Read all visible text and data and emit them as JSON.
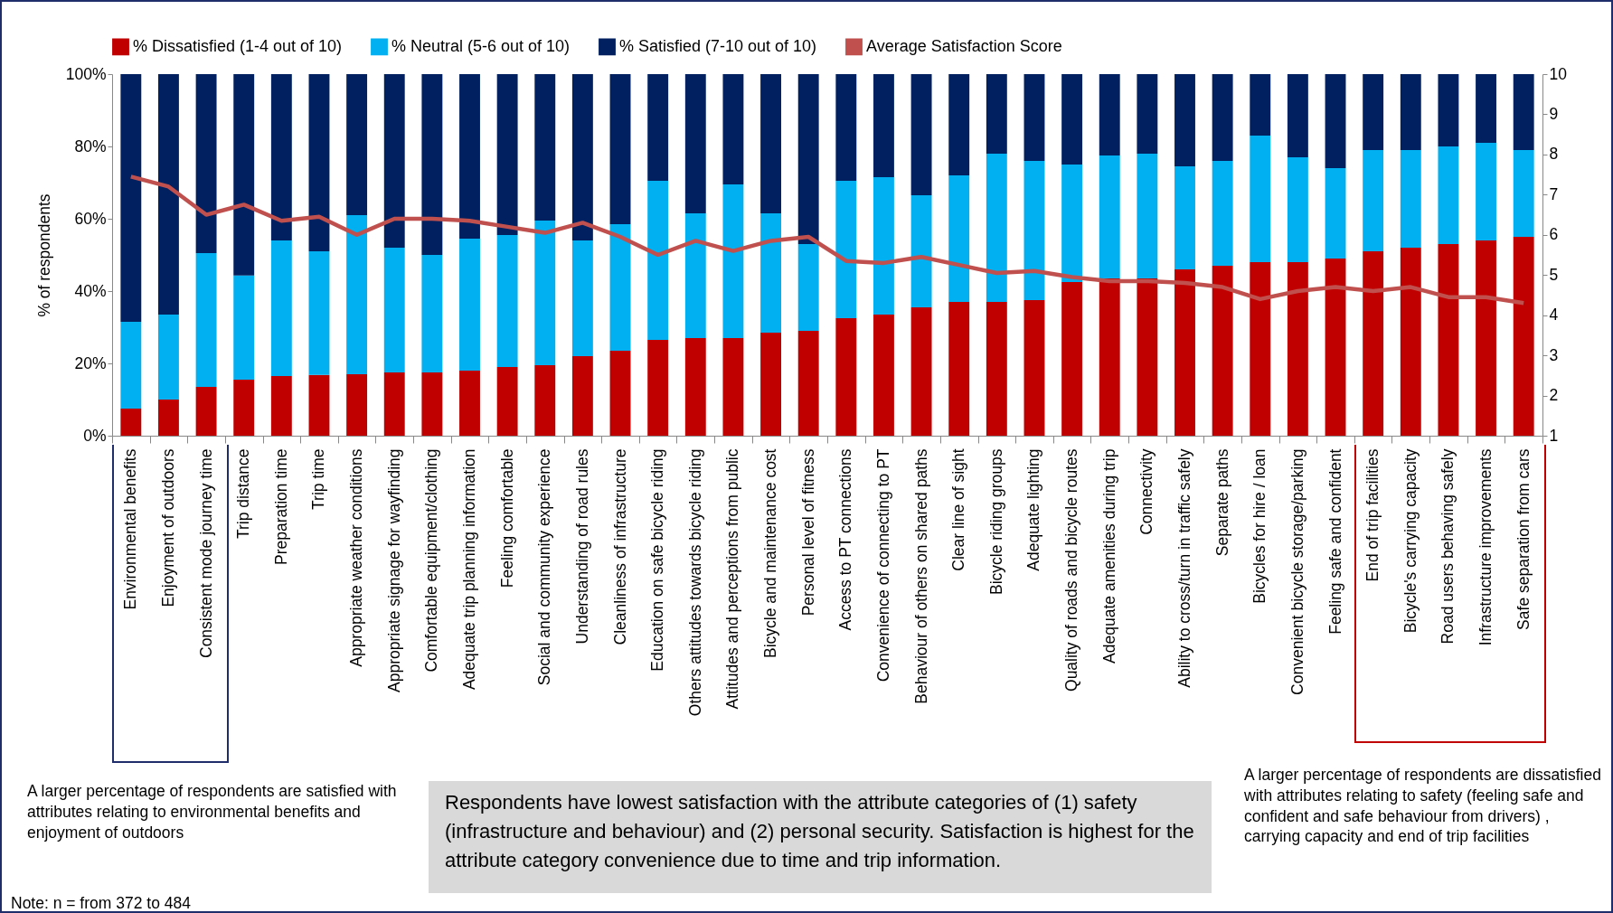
{
  "chart_data": {
    "type": "bar",
    "stacked": true,
    "categories": [
      "Environmental benefits",
      "Enjoyment of outdoors",
      "Consistent mode journey time",
      "Trip distance",
      "Preparation time",
      "Trip time",
      "Appropriate weather conditions",
      "Appropriate signage for wayfinding",
      "Comfortable equipment/clothing",
      "Adequate trip planning information",
      "Feeling comfortable",
      "Social and community experience",
      "Understanding of road rules",
      "Cleanliness of infrastructure",
      "Education on safe bicycle riding",
      "Others attitudes towards bicycle riding",
      "Attitudes and perceptions from public",
      "Bicycle and maintenance cost",
      "Personal level of fitness",
      "Access to PT connections",
      "Convenience of connecting to PT",
      "Behaviour of others on shared paths",
      "Clear line of sight",
      "Bicycle riding groups",
      "Adequate lighting",
      "Quality of roads and bicycle routes",
      "Adequate amenities during trip",
      "Connectivity",
      "Ability to cross/turn in traffic safely",
      "Separate paths",
      "Bicycles for hire / loan",
      "Convenient bicycle storage/parking",
      "Feeling safe and confident",
      "End of trip facilities",
      "Bicycle's carrying capacity",
      "Road users behaving safely",
      "Infrastructure improvements",
      "Safe separation from cars"
    ],
    "series": [
      {
        "name": "% Dissatisfied (1-4 out of 10)",
        "color": "#c00000",
        "values": [
          7.5,
          10,
          13.5,
          15.5,
          16.5,
          16.8,
          17,
          17.5,
          17.5,
          18,
          19,
          19.5,
          22,
          23.5,
          26.5,
          27,
          27,
          28.5,
          29,
          32.5,
          33.5,
          35.5,
          37,
          37,
          37.5,
          42.5,
          43.5,
          43.5,
          46,
          47,
          48,
          48,
          49,
          51,
          52,
          53,
          54,
          55
        ]
      },
      {
        "name": "% Neutral (5-6 out of 10)",
        "color": "#00b0f0",
        "values": [
          24,
          23.5,
          37,
          28.8,
          37.5,
          34.2,
          44,
          34.5,
          32.5,
          36.5,
          36.5,
          40,
          32,
          35,
          44,
          34.5,
          42.5,
          33,
          24,
          38,
          38,
          31,
          35,
          41,
          38.5,
          32.5,
          34,
          34.5,
          28.5,
          29,
          35,
          29,
          25,
          28,
          27,
          27,
          27,
          24
        ]
      },
      {
        "name": "% Satisfied (7-10 out of 10)",
        "color": "#002060",
        "values": [
          68.5,
          66.5,
          49.5,
          55.7,
          46,
          49,
          39,
          48,
          50,
          45.5,
          44.5,
          40.5,
          46,
          41.5,
          29.5,
          38.5,
          30.5,
          38.5,
          47,
          29.5,
          28.5,
          33.5,
          28,
          22,
          24,
          25,
          22.5,
          22,
          25.5,
          24,
          17,
          23,
          26,
          21,
          21,
          20,
          19,
          21
        ]
      },
      {
        "name": "Average Satisfaction Score",
        "type": "line",
        "axis": "y2",
        "color": "#c0504d",
        "values": [
          7.45,
          7.2,
          6.5,
          6.75,
          6.35,
          6.45,
          6.0,
          6.4,
          6.4,
          6.35,
          6.2,
          6.05,
          6.3,
          5.95,
          5.5,
          5.85,
          5.6,
          5.85,
          5.95,
          5.35,
          5.3,
          5.45,
          5.25,
          5.05,
          5.1,
          4.95,
          4.85,
          4.85,
          4.8,
          4.7,
          4.4,
          4.6,
          4.7,
          4.6,
          4.7,
          4.45,
          4.45,
          4.3
        ]
      }
    ],
    "ylabel": "% of respondents",
    "ylim": [
      0,
      100
    ],
    "yticks": [
      {
        "value": 0,
        "label": "0%"
      },
      {
        "value": 20,
        "label": "20%"
      },
      {
        "value": 40,
        "label": "40%"
      },
      {
        "value": 60,
        "label": "60%"
      },
      {
        "value": 80,
        "label": "80%"
      },
      {
        "value": 100,
        "label": "100%"
      }
    ],
    "y2lim": [
      1,
      10
    ],
    "y2ticks": [
      1,
      2,
      3,
      4,
      5,
      6,
      7,
      8,
      9,
      10
    ],
    "legend": "top",
    "grid": false,
    "annotations": [
      "A larger percentage of respondents are satisfied with attributes relating to environmental benefits and enjoyment of outdoors",
      "Respondents have lowest satisfaction with the attribute categories of (1) safety (infrastructure and behaviour) and (2) personal security. Satisfaction is highest for the attribute category convenience due to time and trip information.",
      "A larger percentage of respondents are dissatisfied with attributes relating to safety (feeling safe and confident and safe behaviour from drivers) , carrying capacity and end of trip facilities",
      "Note: n = from 372 to 484"
    ]
  }
}
